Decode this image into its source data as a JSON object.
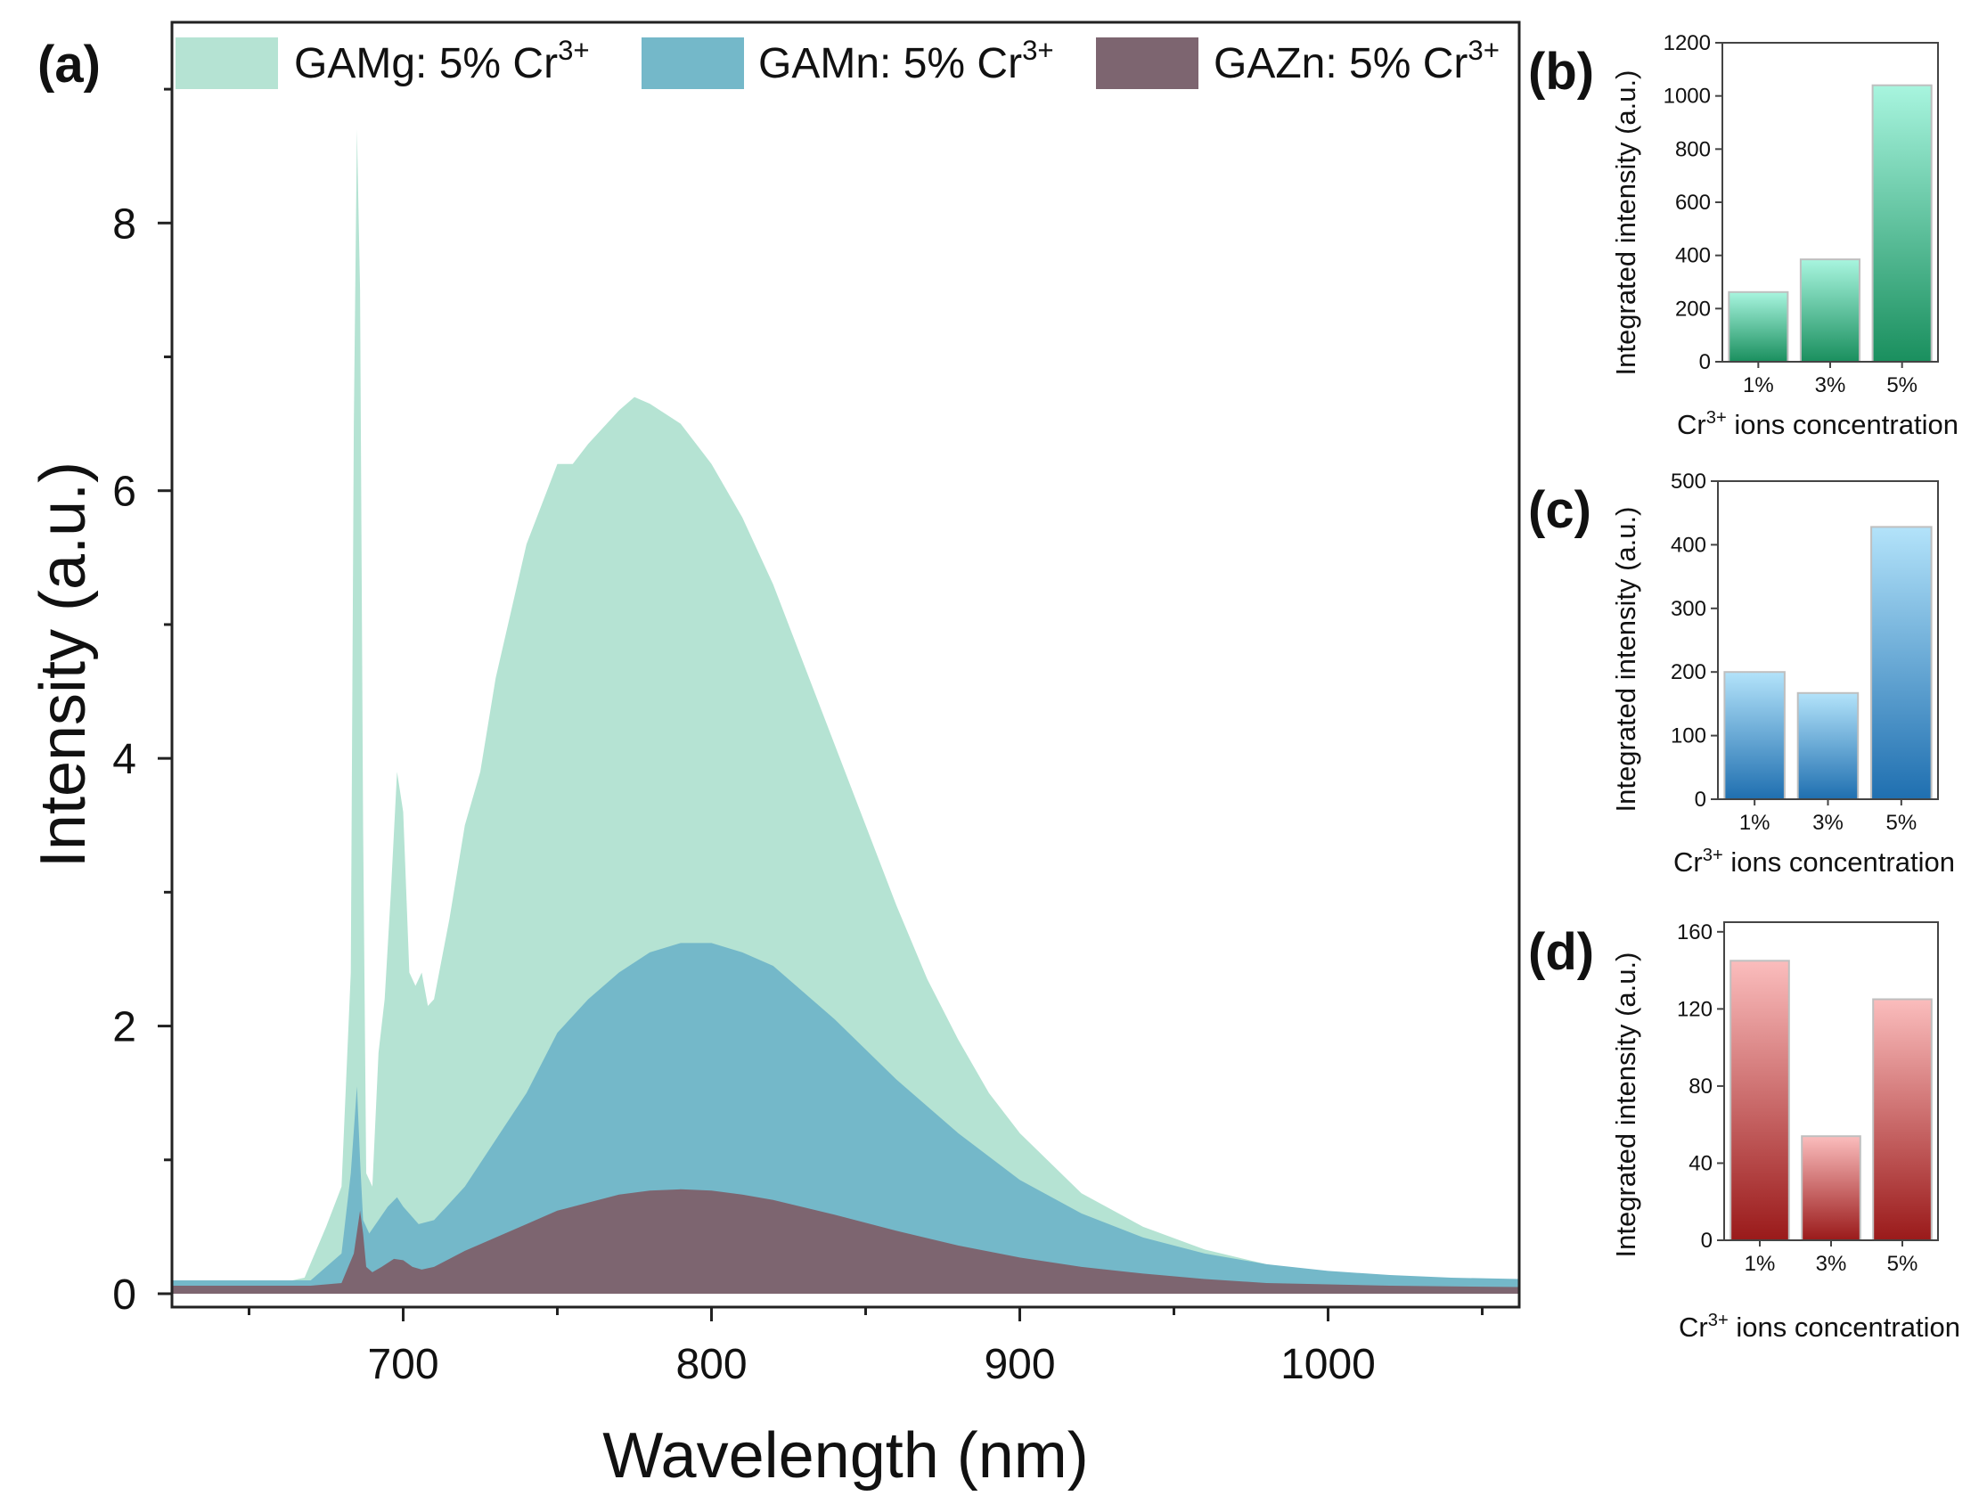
{
  "chart_data": [
    {
      "panel": "(a)",
      "type": "area",
      "xlabel": "Wavelength (nm)",
      "ylabel": "Intensity (a.u.)",
      "xlim": [
        625,
        1062
      ],
      "ylim": [
        -0.1,
        9.5
      ],
      "xticks": [
        700,
        800,
        900,
        1000
      ],
      "yticks": [
        0,
        2,
        4,
        6,
        8
      ],
      "legend_position": "top",
      "series": [
        {
          "name": "GAMg: 5% Cr3+",
          "label_main": "GAMg: 5% Cr",
          "label_sup": "3+",
          "color": "#b5e3d3",
          "x": [
            625,
            650,
            660,
            668,
            675,
            680,
            683,
            684,
            685,
            686,
            687,
            688,
            690,
            692,
            694,
            696,
            698,
            700,
            702,
            704,
            706,
            708,
            710,
            715,
            720,
            725,
            730,
            740,
            750,
            755,
            760,
            770,
            775,
            780,
            790,
            800,
            810,
            820,
            830,
            840,
            850,
            860,
            870,
            880,
            890,
            900,
            920,
            940,
            960,
            980,
            1000,
            1020,
            1030,
            1040,
            1062
          ],
          "y": [
            0.08,
            0.08,
            0.08,
            0.12,
            0.5,
            0.8,
            2.4,
            6.5,
            8.7,
            7.5,
            3.5,
            0.9,
            0.8,
            1.8,
            2.2,
            3.0,
            3.9,
            3.6,
            2.4,
            2.3,
            2.4,
            2.15,
            2.2,
            2.8,
            3.5,
            3.9,
            4.6,
            5.6,
            6.2,
            6.2,
            6.35,
            6.6,
            6.7,
            6.65,
            6.5,
            6.2,
            5.8,
            5.3,
            4.7,
            4.1,
            3.5,
            2.9,
            2.35,
            1.9,
            1.5,
            1.2,
            0.75,
            0.5,
            0.33,
            0.22,
            0.15,
            0.12,
            0.1,
            0.08,
            0.06
          ]
        },
        {
          "name": "GAMn: 5% Cr3+",
          "label_main": "GAMn: 5% Cr",
          "label_sup": "3+",
          "color": "#74b8c9",
          "x": [
            625,
            650,
            670,
            680,
            683,
            685,
            686,
            687,
            689,
            692,
            695,
            698,
            700,
            705,
            710,
            720,
            730,
            740,
            750,
            760,
            770,
            780,
            790,
            800,
            810,
            820,
            840,
            860,
            880,
            900,
            920,
            940,
            960,
            980,
            1000,
            1020,
            1040,
            1062
          ],
          "y": [
            0.1,
            0.1,
            0.1,
            0.3,
            0.9,
            1.55,
            1.0,
            0.55,
            0.45,
            0.55,
            0.65,
            0.72,
            0.65,
            0.52,
            0.55,
            0.8,
            1.15,
            1.5,
            1.95,
            2.2,
            2.4,
            2.55,
            2.62,
            2.62,
            2.55,
            2.45,
            2.05,
            1.6,
            1.2,
            0.85,
            0.6,
            0.42,
            0.3,
            0.22,
            0.17,
            0.14,
            0.12,
            0.11
          ]
        },
        {
          "name": "GAZn: 5% Cr3+",
          "label_main": "GAZn: 5% Cr",
          "label_sup": "3+",
          "color": "#7d6570",
          "x": [
            625,
            670,
            680,
            684,
            686,
            687,
            688,
            690,
            693,
            697,
            700,
            703,
            706,
            710,
            720,
            730,
            740,
            750,
            760,
            770,
            780,
            790,
            800,
            810,
            820,
            840,
            860,
            880,
            900,
            920,
            940,
            960,
            980,
            1000,
            1020,
            1062
          ],
          "y": [
            0.06,
            0.06,
            0.08,
            0.3,
            0.62,
            0.45,
            0.2,
            0.16,
            0.2,
            0.26,
            0.25,
            0.2,
            0.18,
            0.2,
            0.32,
            0.42,
            0.52,
            0.62,
            0.68,
            0.74,
            0.77,
            0.78,
            0.77,
            0.74,
            0.7,
            0.59,
            0.47,
            0.36,
            0.27,
            0.2,
            0.15,
            0.11,
            0.08,
            0.07,
            0.06,
            0.05
          ]
        }
      ]
    },
    {
      "panel": "(b)",
      "type": "bar",
      "categories": [
        "1%",
        "3%",
        "5%"
      ],
      "values": [
        262,
        385,
        1040
      ],
      "ylim": [
        0,
        1200
      ],
      "yticks": [
        0,
        200,
        400,
        600,
        800,
        1000,
        1200
      ],
      "ylabel": "Integrated intensity (a.u.)",
      "xlabel_pre": "Cr",
      "xlabel_sup": "3+",
      "xlabel_post": " ions concentration",
      "color_top": "#a8f5df",
      "color_bottom": "#1a8f5e"
    },
    {
      "panel": "(c)",
      "type": "bar",
      "categories": [
        "1%",
        "3%",
        "5%"
      ],
      "values": [
        200,
        167,
        428
      ],
      "ylim": [
        0,
        500
      ],
      "yticks": [
        0,
        100,
        200,
        300,
        400,
        500
      ],
      "ylabel": "Integrated intensity (a.u.)",
      "xlabel_pre": "Cr",
      "xlabel_sup": "3+",
      "xlabel_post": " ions concentration",
      "color_top": "#b3e3fa",
      "color_bottom": "#1f6fb0"
    },
    {
      "panel": "(d)",
      "type": "bar",
      "categories": [
        "1%",
        "3%",
        "5%"
      ],
      "values": [
        145,
        54,
        125
      ],
      "ylim": [
        0,
        165
      ],
      "yticks": [
        0,
        40,
        80,
        120,
        160
      ],
      "ylabel": "Integrated intensity (a.u.)",
      "xlabel_pre": "Cr",
      "xlabel_sup": "3+",
      "xlabel_post": " ions concentration",
      "color_top": "#fbbdbd",
      "color_bottom": "#9a1a1a"
    }
  ]
}
